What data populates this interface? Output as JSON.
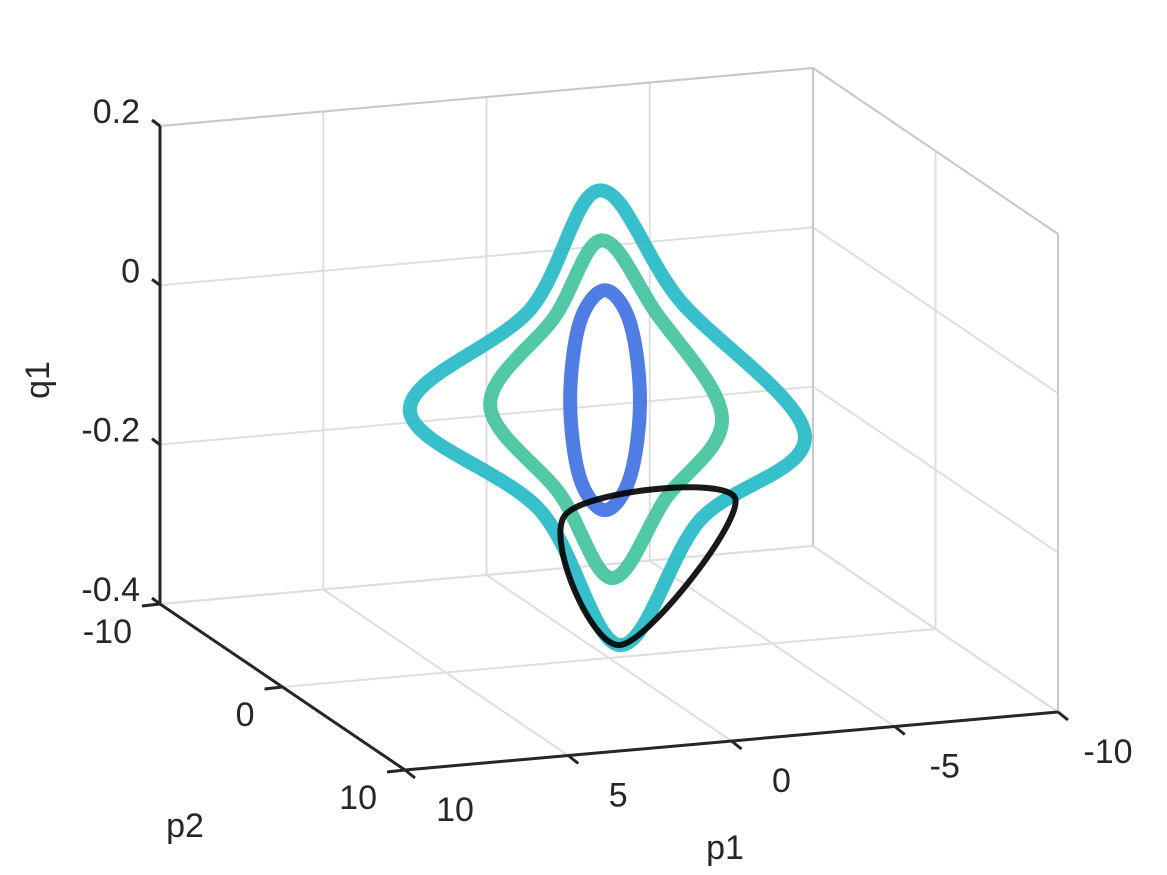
{
  "chart_data": {
    "type": "line3d",
    "xlabel": "p1",
    "ylabel": "p2",
    "zlabel": "q1",
    "xlim": [
      -10,
      10
    ],
    "xticks": [
      -10,
      -5,
      0,
      5,
      10
    ],
    "ylim": [
      -10,
      10
    ],
    "yticks": [
      -10,
      0,
      10
    ],
    "zlim": [
      -0.4,
      0.2
    ],
    "zticks": [
      -0.4,
      -0.2,
      0,
      0.2
    ],
    "grid": true,
    "series": [
      {
        "color": "#22b8c7",
        "x": [
          0.28,
          -2.17,
          -6.0,
          -2.79,
          -0.34,
          2.11,
          6.1,
          2.42
        ],
        "y": [
          0,
          0,
          0,
          0,
          0,
          0,
          0,
          0
        ],
        "z": [
          0.188,
          0.041,
          -0.142,
          -0.237,
          -0.385,
          -0.207,
          -0.067,
          0.046
        ]
      },
      {
        "color": "#3fc29a",
        "x": [
          0.22,
          -1.41,
          -3.46,
          -1.72,
          -0.09,
          1.5,
          3.64,
          1.65
        ],
        "y": [
          0,
          0,
          0,
          0,
          0,
          0,
          0,
          0
        ],
        "z": [
          0.125,
          0.03,
          -0.111,
          -0.207,
          -0.3,
          -0.189,
          -0.069,
          0.035
        ]
      },
      {
        "color": "#3d6fe0",
        "x": [
          0.12,
          -0.64,
          -0.95,
          -0.64,
          0.12,
          0.89,
          1.19,
          0.89
        ],
        "y": [
          0,
          0,
          0,
          0,
          0,
          0,
          0,
          0
        ],
        "z": [
          0.062,
          0.019,
          -0.08,
          -0.176,
          -0.214,
          -0.171,
          -0.072,
          0.025
        ]
      },
      {
        "color": "#000000",
        "x": [
          1.35,
          -3.86,
          -0.34
        ],
        "y": [
          0,
          0,
          0
        ],
        "z": [
          -0.216,
          -0.213,
          -0.385
        ]
      }
    ]
  }
}
